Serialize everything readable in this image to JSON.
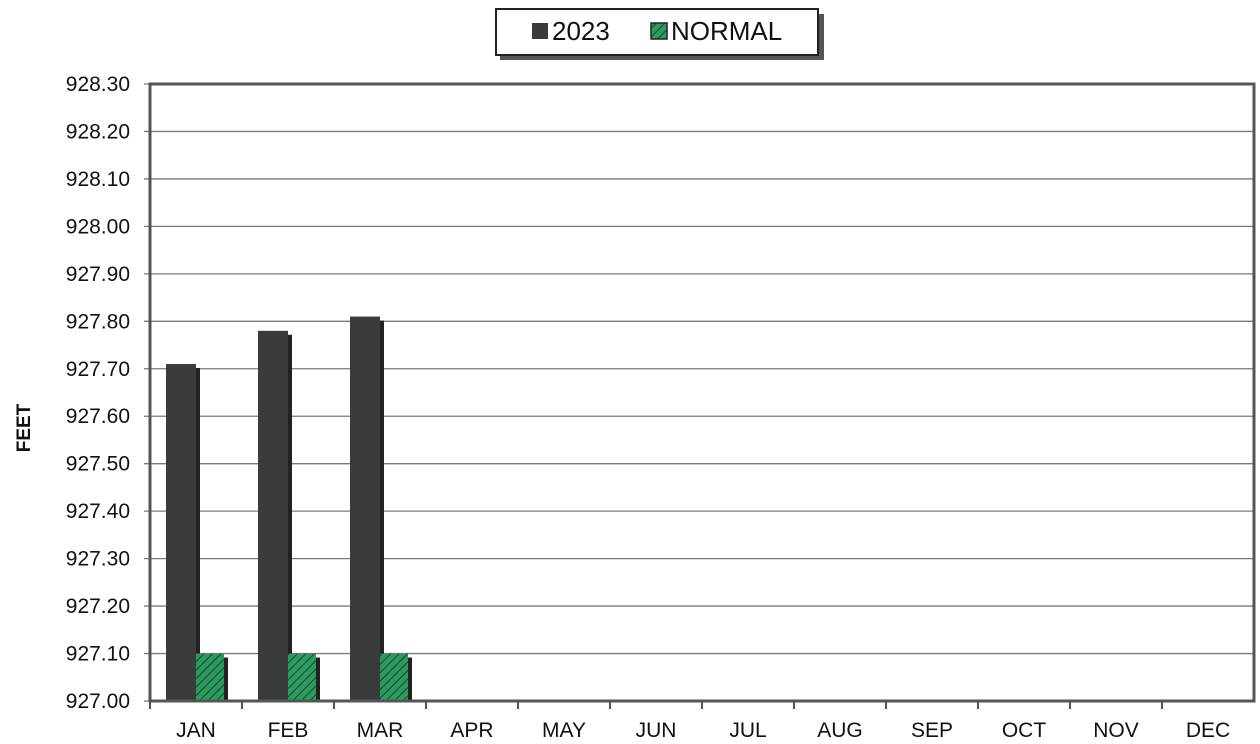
{
  "chart_data": {
    "type": "bar",
    "title": "",
    "xlabel": "",
    "ylabel": "FEET",
    "categories": [
      "JAN",
      "FEB",
      "MAR",
      "APR",
      "MAY",
      "JUN",
      "JUL",
      "AUG",
      "SEP",
      "OCT",
      "NOV",
      "DEC"
    ],
    "series": [
      {
        "name": "2023",
        "values": [
          927.71,
          927.78,
          927.81,
          null,
          null,
          null,
          null,
          null,
          null,
          null,
          null,
          null
        ]
      },
      {
        "name": "NORMAL",
        "values": [
          927.1,
          927.1,
          927.1,
          null,
          null,
          null,
          null,
          null,
          null,
          null,
          null,
          null
        ]
      }
    ],
    "ylim": [
      927.0,
      928.3
    ],
    "yticks": [
      "927.00",
      "927.10",
      "927.20",
      "927.30",
      "927.40",
      "927.50",
      "927.60",
      "927.70",
      "927.80",
      "927.90",
      "928.00",
      "928.10",
      "928.20",
      "928.30"
    ],
    "grid": true,
    "legend_position": "top-center",
    "colors": {
      "2023": "#3a3c3b",
      "NORMAL": "#2e9a60"
    }
  }
}
